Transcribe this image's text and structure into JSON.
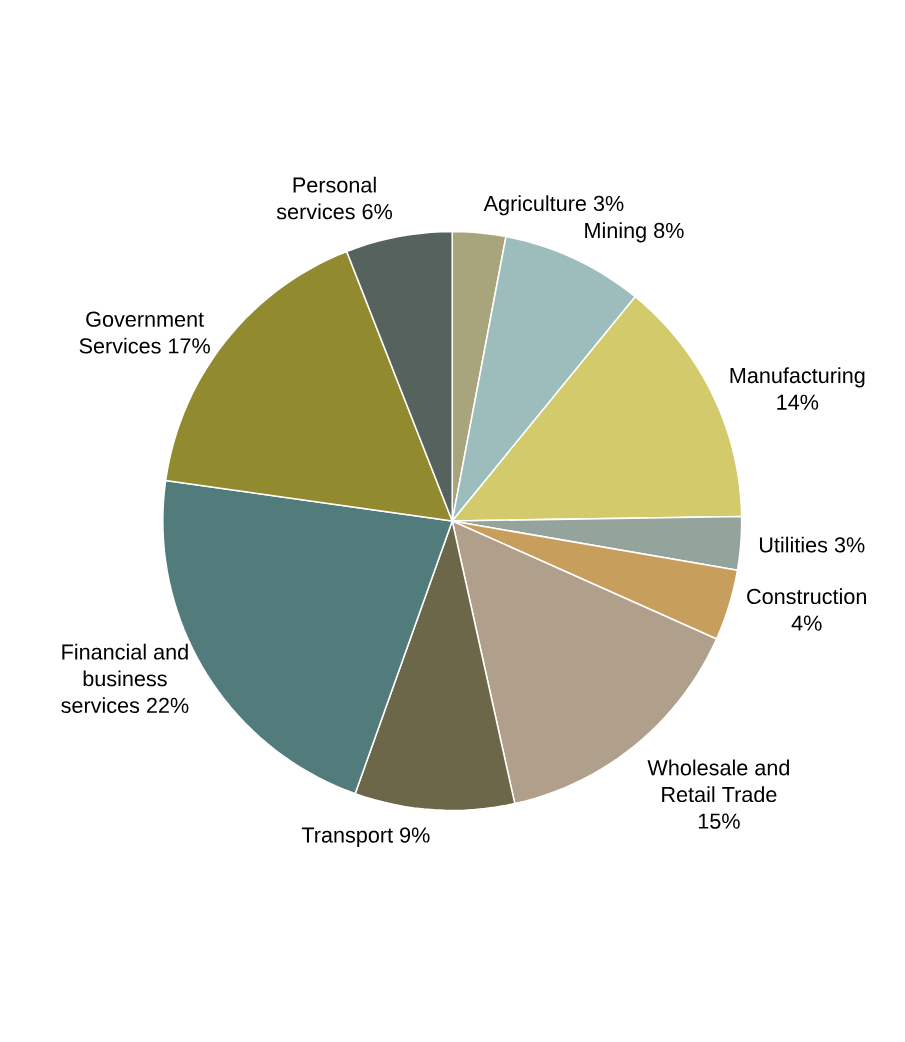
{
  "chart_data": {
    "type": "pie",
    "categories": [
      "Agriculture",
      "Mining",
      "Manufacturing",
      "Utilities",
      "Construction",
      "Wholesale and Retail Trade",
      "Transport",
      "Financial and business services",
      "Government Services",
      "Personal services"
    ],
    "values": [
      3,
      8,
      14,
      3,
      4,
      15,
      9,
      22,
      17,
      6
    ],
    "value_labels": [
      "3%",
      "8%",
      "14%",
      "3%",
      "4%",
      "15%",
      "9%",
      "22%",
      "17%",
      "6%"
    ],
    "colors": [
      "#a8a47c",
      "#9dbdbd",
      "#d2ca6b",
      "#94a39b",
      "#c89e5c",
      "#b09f8a",
      "#6b6748",
      "#527c7b",
      "#918a2e",
      "#55625d"
    ]
  }
}
